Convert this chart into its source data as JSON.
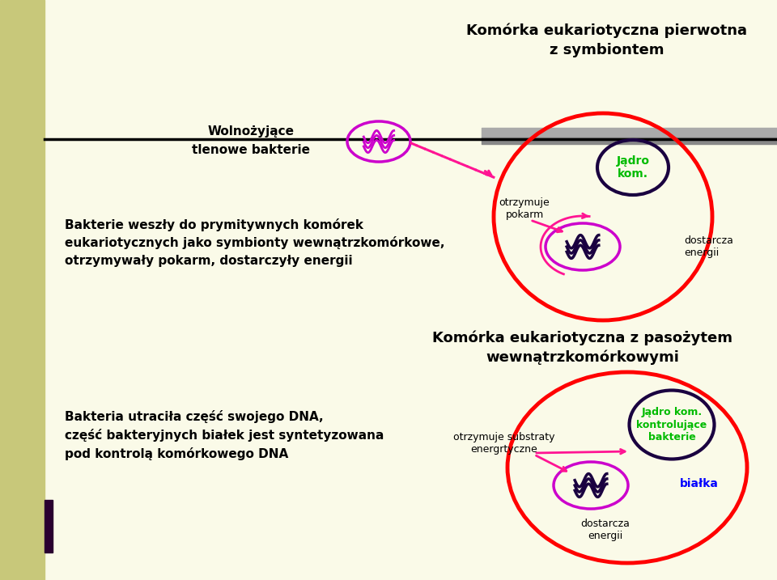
{
  "bg_color": "#fafae8",
  "left_bar_color": "#c8c87a",
  "title1_line1": "Komórka eukariotyczna pierwotna",
  "title1_line2": "z symbiontem",
  "title2_line1": "Komórka eukariotyczna z pasożytem",
  "title2_line2": "wewnątrzkomórkowymi",
  "text_wolnozyjace": "Wolnożyjące",
  "text_tlenowe": "tlenowe bakterie",
  "text_bakt1": "Bakterie weszły do prymitywnych komórek",
  "text_bakt2": "eukariotycznych jako symbionty wewnątrzkomórkowe,",
  "text_bakt3": "otrzymywały pokarm, dostarczyły energii",
  "text_jadro1": "Jądro\nkom.",
  "text_otrpokarm": "otrzymuje\npokarm",
  "text_dost1": "dostarcza\nenergii",
  "text_bakt_dna1": "Bakteria utraciła część swojego DNA,",
  "text_bakt_dna2": "część bakteryjnych białek jest syntetyzowana",
  "text_bakt_dna3": "pod kontrolą komórkowego DNA",
  "text_jadro2": "Jądro kom.\nkontrolujące\nbakterie",
  "text_otrsubst": "otrzymuje substraty\nenergrtyczne",
  "text_bialka": "białka",
  "text_dost2": "dostarcza\nenergii",
  "color_red": "#ff0000",
  "color_darkblue": "#1a0040",
  "color_magenta": "#cc00cc",
  "color_green": "#00bb00",
  "color_blue": "#0000ff",
  "color_pink": "#ff1493",
  "color_black": "#000000",
  "color_gray_bar": "#aaaaaa",
  "color_gray_bar2": "#888888"
}
